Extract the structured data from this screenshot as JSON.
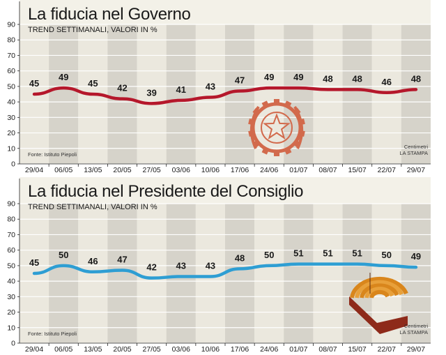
{
  "chart_data": [
    {
      "type": "line",
      "title": "La fiducia nel Governo",
      "subtitle": "TREND SETTIMANALI, VALORI IN %",
      "source": "Fonte: Istituto Piepoli",
      "credit": [
        "Centimetri",
        "LA STAMPA"
      ],
      "categories": [
        "29/04",
        "06/05",
        "13/05",
        "20/05",
        "27/05",
        "03/06",
        "10/06",
        "17/06",
        "24/06",
        "01/07",
        "08/07",
        "15/07",
        "22/07",
        "29/07"
      ],
      "series": [
        {
          "values": [
            45,
            49,
            45,
            42,
            39,
            41,
            43,
            47,
            49,
            49,
            48,
            48,
            46,
            48
          ],
          "color": "#b5172b"
        }
      ],
      "ylim": [
        0,
        90
      ],
      "yticks": [
        0,
        10,
        20,
        30,
        40,
        50,
        60,
        70,
        80,
        90
      ],
      "grid": true,
      "emblem": "italian-republic-emblem"
    },
    {
      "type": "line",
      "title": "La fiducia nel Presidente del Consiglio",
      "subtitle": "TREND SETTIMANALI, VALORI IN %",
      "source": "Fonte: Istituto Piepoli",
      "credit": [
        "Centimetri",
        "LA STAMPA"
      ],
      "categories": [
        "29/04",
        "06/05",
        "13/05",
        "20/05",
        "27/05",
        "03/06",
        "10/06",
        "17/06",
        "24/06",
        "01/07",
        "08/07",
        "15/07",
        "22/07",
        "29/07"
      ],
      "series": [
        {
          "values": [
            45,
            50,
            46,
            47,
            42,
            43,
            43,
            48,
            50,
            51,
            51,
            51,
            50,
            49
          ],
          "color": "#2e9ed3"
        }
      ],
      "ylim": [
        0,
        90
      ],
      "yticks": [
        0,
        10,
        20,
        30,
        40,
        50,
        60,
        70,
        80,
        90
      ],
      "grid": true,
      "emblem": "parliament-hemicycle"
    }
  ],
  "colors": {
    "panel_background": "#f3f1e8",
    "band_light": "#ebe8de",
    "band_dark": "#d6d3ca",
    "grid": "#ffffff",
    "emblem": "#d26a4c",
    "hemicycle": "#d9861c"
  }
}
